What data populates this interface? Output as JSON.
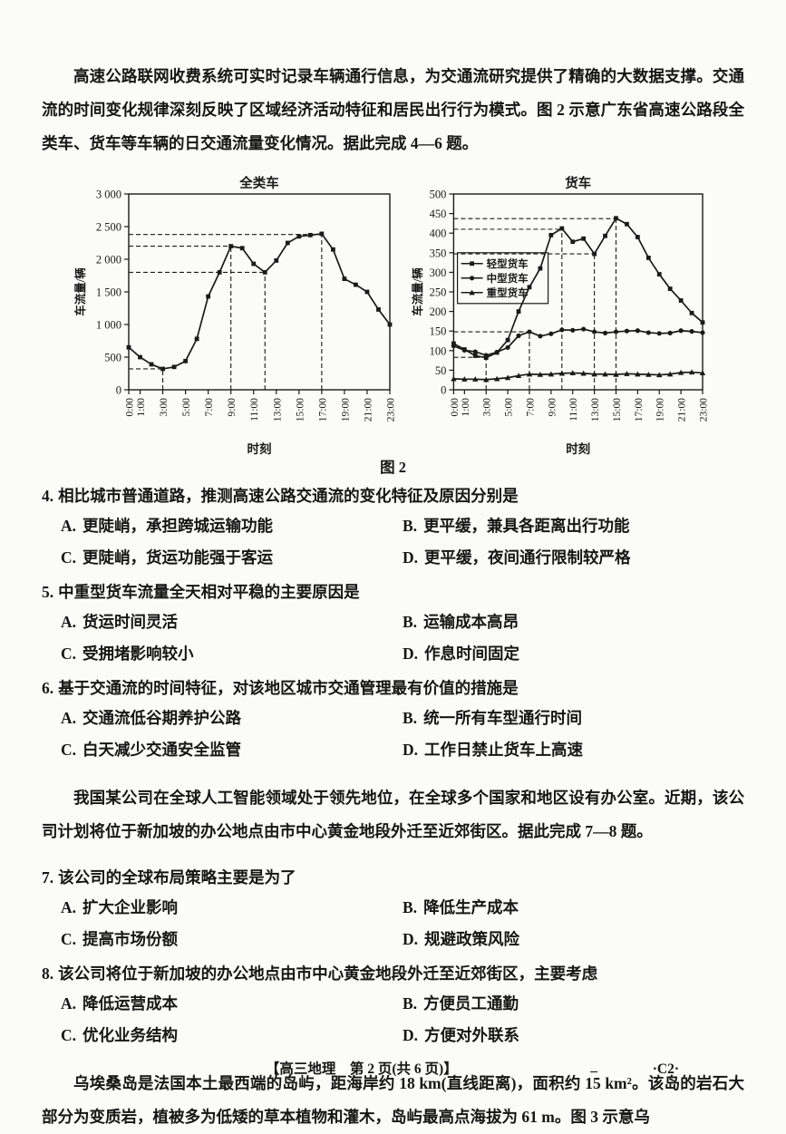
{
  "intro1": "高速公路联网收费系统可实时记录车辆通行信息，为交通流研究提供了精确的大数据支撑。交通流的时间变化规律深刻反映了区域经济活动特征和居民出行行为模式。图 2 示意广东省高速公路段全类车、货车等车辆的日交通流量变化情况。据此完成 4—6 题。",
  "figure": {
    "caption": "图 2"
  },
  "questions": [
    {
      "num": "4.",
      "stem": "相比城市普通道路，推测高速公路交通流的变化特征及原因分别是",
      "options": [
        {
          "label": "A.",
          "text": "更陡峭，承担跨城运输功能"
        },
        {
          "label": "B.",
          "text": "更平缓，兼具各距离出行功能"
        },
        {
          "label": "C.",
          "text": "更陡峭，货运功能强于客运"
        },
        {
          "label": "D.",
          "text": "更平缓，夜间通行限制较严格"
        }
      ]
    },
    {
      "num": "5.",
      "stem": "中重型货车流量全天相对平稳的主要原因是",
      "options": [
        {
          "label": "A.",
          "text": "货运时间灵活"
        },
        {
          "label": "B.",
          "text": "运输成本高昂"
        },
        {
          "label": "C.",
          "text": "受拥堵影响较小"
        },
        {
          "label": "D.",
          "text": "作息时间固定"
        }
      ]
    },
    {
      "num": "6.",
      "stem": "基于交通流的时间特征，对该地区城市交通管理最有价值的措施是",
      "options": [
        {
          "label": "A.",
          "text": "交通流低谷期养护公路"
        },
        {
          "label": "B.",
          "text": "统一所有车型通行时间"
        },
        {
          "label": "C.",
          "text": "白天减少交通安全监管"
        },
        {
          "label": "D.",
          "text": "工作日禁止货车上高速"
        }
      ]
    },
    {
      "num": "7.",
      "stem": "该公司的全球布局策略主要是为了",
      "options": [
        {
          "label": "A.",
          "text": "扩大企业影响"
        },
        {
          "label": "B.",
          "text": "降低生产成本"
        },
        {
          "label": "C.",
          "text": "提高市场份额"
        },
        {
          "label": "D.",
          "text": "规避政策风险"
        }
      ]
    },
    {
      "num": "8.",
      "stem": "该公司将位于新加坡的办公地点由市中心黄金地段外迁至近郊街区，主要考虑",
      "options": [
        {
          "label": "A.",
          "text": "降低运营成本"
        },
        {
          "label": "B.",
          "text": "方便员工通勤"
        },
        {
          "label": "C.",
          "text": "优化业务结构"
        },
        {
          "label": "D.",
          "text": "方便对外联系"
        }
      ]
    }
  ],
  "intro2": "我国某公司在全球人工智能领域处于领先地位，在全球多个国家和地区设有办公室。近期，该公司计划将位于新加坡的办公地点由市中心黄金地段外迁至近郊街区。据此完成 7—8 题。",
  "intro3": "乌埃桑岛是法国本土最西端的岛屿，距海岸约 18 km(直线距离)，面积约 15 km²。该岛的岩石大部分为变质岩，植被多为低矮的草本植物和灌木，岛屿最高点海拔为 61 m。图 3 示意乌",
  "footer": {
    "center": "【高三地理　第 2 页(共 6 页)】",
    "dash": "_",
    "code": "·C2·"
  },
  "ink_color": "#1a1a1a",
  "chart_data": [
    {
      "type": "line",
      "title": "全类车",
      "xlabel": "时刻",
      "ylabel": "车流量/辆",
      "xlim": [
        0,
        23
      ],
      "ylim": [
        0,
        3000
      ],
      "grid": false,
      "legend_position": "none",
      "yticks": [
        {
          "v": 0,
          "label": "0"
        },
        {
          "v": 500,
          "label": "500"
        },
        {
          "v": 1000,
          "label": "1 000"
        },
        {
          "v": 1500,
          "label": "1 500"
        },
        {
          "v": 2000,
          "label": "2 000"
        },
        {
          "v": 2500,
          "label": "2 500"
        },
        {
          "v": 3000,
          "label": "3 000"
        }
      ],
      "xticks": [
        {
          "v": 0,
          "label": "0:00"
        },
        {
          "v": 1,
          "label": "1:00"
        },
        {
          "v": 3,
          "label": "3:00"
        },
        {
          "v": 5,
          "label": "5:00"
        },
        {
          "v": 7,
          "label": "7:00"
        },
        {
          "v": 9,
          "label": "9:00"
        },
        {
          "v": 11,
          "label": "11:00"
        },
        {
          "v": 13,
          "label": "13:00"
        },
        {
          "v": 15,
          "label": "15:00"
        },
        {
          "v": 17,
          "label": "17:00"
        },
        {
          "v": 19,
          "label": "19:00"
        },
        {
          "v": 21,
          "label": "21:00"
        },
        {
          "v": 23,
          "label": "23:00"
        }
      ],
      "x": [
        0,
        1,
        2,
        3,
        4,
        5,
        6,
        7,
        8,
        9,
        10,
        11,
        12,
        13,
        14,
        15,
        16,
        17,
        18,
        19,
        20,
        21,
        22,
        23
      ],
      "series": [
        {
          "name": "全类车",
          "marker": "square",
          "values": [
            650,
            500,
            390,
            320,
            350,
            440,
            780,
            1430,
            1800,
            2200,
            2170,
            1930,
            1800,
            1980,
            2250,
            2350,
            2370,
            2390,
            2150,
            1700,
            1610,
            1500,
            1230,
            1000
          ]
        }
      ],
      "guides": [
        {
          "x": 3,
          "y": 320
        },
        {
          "x": 9,
          "y": 2200
        },
        {
          "x": 12,
          "y": 1800
        },
        {
          "x": 17,
          "y": 2380
        }
      ],
      "legend": null
    },
    {
      "type": "line",
      "title": "货车",
      "xlabel": "时刻",
      "ylabel": "车流量/辆",
      "xlim": [
        0,
        23
      ],
      "ylim": [
        0,
        500
      ],
      "grid": false,
      "legend_position": "upper-left-inside",
      "yticks": [
        {
          "v": 0,
          "label": "0"
        },
        {
          "v": 50,
          "label": "50"
        },
        {
          "v": 100,
          "label": "100"
        },
        {
          "v": 150,
          "label": "150"
        },
        {
          "v": 200,
          "label": "200"
        },
        {
          "v": 250,
          "label": "250"
        },
        {
          "v": 300,
          "label": "300"
        },
        {
          "v": 350,
          "label": "350"
        },
        {
          "v": 400,
          "label": "400"
        },
        {
          "v": 450,
          "label": "450"
        },
        {
          "v": 500,
          "label": "500"
        }
      ],
      "xticks": [
        {
          "v": 0,
          "label": "0:00"
        },
        {
          "v": 1,
          "label": "1:00"
        },
        {
          "v": 3,
          "label": "3:00"
        },
        {
          "v": 5,
          "label": "5:00"
        },
        {
          "v": 7,
          "label": "7:00"
        },
        {
          "v": 9,
          "label": "9:00"
        },
        {
          "v": 11,
          "label": "11:00"
        },
        {
          "v": 13,
          "label": "13:00"
        },
        {
          "v": 15,
          "label": "15:00"
        },
        {
          "v": 17,
          "label": "17:00"
        },
        {
          "v": 19,
          "label": "19:00"
        },
        {
          "v": 21,
          "label": "21:00"
        },
        {
          "v": 23,
          "label": "23:00"
        }
      ],
      "x": [
        0,
        1,
        2,
        3,
        4,
        5,
        6,
        7,
        8,
        9,
        10,
        11,
        12,
        13,
        14,
        15,
        16,
        17,
        18,
        19,
        20,
        21,
        22,
        23
      ],
      "series": [
        {
          "name": "轻型货车",
          "marker": "square",
          "values": [
            118,
            103,
            87,
            82,
            95,
            127,
            200,
            262,
            310,
            395,
            412,
            378,
            386,
            347,
            393,
            438,
            423,
            390,
            337,
            295,
            258,
            228,
            196,
            172
          ]
        },
        {
          "name": "中型货车",
          "marker": "circle",
          "values": [
            112,
            101,
            97,
            88,
            96,
            108,
            138,
            148,
            137,
            143,
            153,
            152,
            155,
            148,
            145,
            148,
            150,
            151,
            146,
            144,
            145,
            151,
            149,
            146
          ]
        },
        {
          "name": "重型货车",
          "marker": "triangle",
          "values": [
            28,
            27,
            27,
            26,
            28,
            31,
            36,
            40,
            39,
            40,
            42,
            43,
            42,
            40,
            40,
            39,
            41,
            40,
            39,
            38,
            40,
            44,
            45,
            43
          ]
        }
      ],
      "guides": [
        {
          "x": 3,
          "y": 83
        },
        {
          "x": 7,
          "y": 148
        },
        {
          "x": 10,
          "y": 410
        },
        {
          "x": 13,
          "y": 347
        },
        {
          "x": 15,
          "y": 437
        }
      ],
      "legend": {
        "x": 0.35,
        "y": 350
      }
    }
  ]
}
